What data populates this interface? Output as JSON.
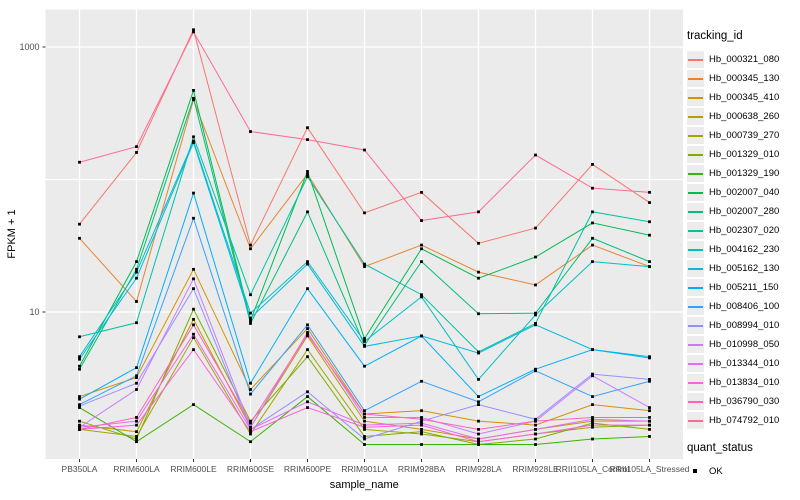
{
  "figure": {
    "bg": "#FFFFFF",
    "panel_bg": "#EBEBEB",
    "grid_color": "#FFFFFF",
    "tick_color": "#333333",
    "tick_label_color": "#4D4D4D",
    "axis_title_color": "#000000",
    "point_color": "#000000"
  },
  "axes": {
    "y_title": "FPKM + 1",
    "x_title": "sample_name",
    "y_scale": "log10",
    "y_ticks": [
      {
        "label": "1000",
        "value": 1000
      },
      {
        "label": "10",
        "value": 10
      }
    ],
    "y_gridlines": [
      10,
      100,
      1000
    ]
  },
  "legend": {
    "tracking_title": "tracking_id",
    "quant_title": "quant_status",
    "quant_items": [
      {
        "label": "OK"
      }
    ]
  },
  "chart_data": {
    "type": "line",
    "title": "",
    "xlabel": "sample_name",
    "ylabel": "FPKM + 1",
    "y_scale": "log10",
    "ylim": [
      0.75,
      1600
    ],
    "grid": true,
    "legend_position": "right",
    "x_categories": [
      "PB350LA",
      "RRIM600LA",
      "RRIM600LE",
      "RRIM600SE",
      "RRIM600PE",
      "RRIM901LA",
      "RRIM928BA",
      "RRIM928LA",
      "RRIM928LE",
      "RRII105LA_Control",
      "RRII105LA_Stressed"
    ],
    "series": [
      {
        "name": "Hb_000321_080",
        "color": "#F8766D",
        "values": [
          46,
          160,
          1350,
          32,
          246,
          56,
          80,
          33,
          43,
          130,
          67
        ]
      },
      {
        "name": "Hb_000345_130",
        "color": "#EA8331",
        "values": [
          36,
          12,
          400,
          30,
          110,
          22,
          32,
          20,
          16,
          32,
          22
        ]
      },
      {
        "name": "Hb_000345_410",
        "color": "#D89000",
        "values": [
          2.3,
          3.2,
          21,
          2.6,
          7.5,
          1.7,
          1.8,
          1.5,
          1.4,
          2.0,
          1.8
        ]
      },
      {
        "name": "Hb_000638_260",
        "color": "#C09B00",
        "values": [
          1.4,
          1.25,
          8.8,
          1.35,
          6.6,
          1.5,
          1.3,
          1.1,
          1.3,
          1.5,
          1.5
        ]
      },
      {
        "name": "Hb_000739_270",
        "color": "#A3A500",
        "values": [
          1.3,
          1.15,
          6.4,
          1.2,
          5.2,
          1.3,
          1.2,
          1.05,
          1.2,
          1.35,
          1.4
        ]
      },
      {
        "name": "Hb_001329_010",
        "color": "#7CAE00",
        "values": [
          1.5,
          1.1,
          10.5,
          1.5,
          4.6,
          1.15,
          1.25,
          1.0,
          1.1,
          1.45,
          1.3
        ]
      },
      {
        "name": "Hb_001329_190",
        "color": "#39B600",
        "values": [
          1.9,
          1.05,
          2.0,
          1.05,
          2.3,
          1.0,
          1.0,
          1.0,
          1.0,
          1.1,
          1.15
        ]
      },
      {
        "name": "Hb_002007_040",
        "color": "#00BB4E",
        "values": [
          3.9,
          24,
          470,
          8.6,
          115,
          6.3,
          30,
          18,
          26,
          47,
          38
        ]
      },
      {
        "name": "Hb_002007_280",
        "color": "#00BF7D",
        "values": [
          3.7,
          21,
          410,
          8.2,
          57,
          5.6,
          24,
          9.7,
          9.8,
          36,
          24
        ]
      },
      {
        "name": "Hb_002307_020",
        "color": "#00C1A3",
        "values": [
          6.5,
          8.3,
          210,
          13.5,
          105,
          23,
          13.5,
          5.0,
          8.2,
          57,
          48
        ]
      },
      {
        "name": "Hb_004162_230",
        "color": "#00BFC4",
        "values": [
          4.6,
          20,
          195,
          9.8,
          24,
          6.0,
          13.0,
          3.1,
          9.5,
          24,
          22
        ]
      },
      {
        "name": "Hb_005162_130",
        "color": "#00BAE0",
        "values": [
          4.4,
          18,
          190,
          9.0,
          23,
          5.5,
          6.6,
          4.9,
          8.0,
          5.2,
          4.6
        ]
      },
      {
        "name": "Hb_005211_150",
        "color": "#00B0F6",
        "values": [
          2.2,
          3.8,
          79,
          2.9,
          15,
          3.9,
          6.6,
          2.3,
          3.7,
          5.2,
          4.5
        ]
      },
      {
        "name": "Hb_008406_100",
        "color": "#35A2FF",
        "values": [
          2.0,
          3.3,
          51,
          2.4,
          8.0,
          1.8,
          3.0,
          2.1,
          3.6,
          2.3,
          3.0
        ]
      },
      {
        "name": "Hb_008994_010",
        "color": "#9590FF",
        "values": [
          1.95,
          2.9,
          15,
          1.3,
          2.5,
          1.1,
          1.5,
          2.0,
          1.55,
          3.4,
          3.1
        ]
      },
      {
        "name": "Hb_010998_050",
        "color": "#C77CFF",
        "values": [
          1.35,
          2.6,
          17.8,
          1.35,
          7.0,
          1.6,
          1.6,
          1.2,
          1.5,
          3.3,
          1.9
        ]
      },
      {
        "name": "Hb_013344_010",
        "color": "#E76BF3",
        "values": [
          1.35,
          1.5,
          6.8,
          1.3,
          2.1,
          1.4,
          1.45,
          1.1,
          1.3,
          1.55,
          1.5
        ]
      },
      {
        "name": "Hb_013834_010",
        "color": "#FA62DB",
        "values": [
          1.3,
          1.4,
          5.2,
          1.25,
          1.9,
          1.35,
          1.4,
          1.05,
          1.2,
          1.4,
          1.4
        ]
      },
      {
        "name": "Hb_036790_030",
        "color": "#FF62BC",
        "values": [
          1.3,
          1.6,
          8.0,
          1.45,
          6.8,
          1.7,
          1.55,
          1.3,
          1.5,
          1.6,
          1.6
        ]
      },
      {
        "name": "Hb_074792_010",
        "color": "#FF6A98",
        "values": [
          135,
          177,
          1300,
          230,
          200,
          167,
          49,
          57,
          153,
          86,
          80
        ]
      }
    ]
  }
}
